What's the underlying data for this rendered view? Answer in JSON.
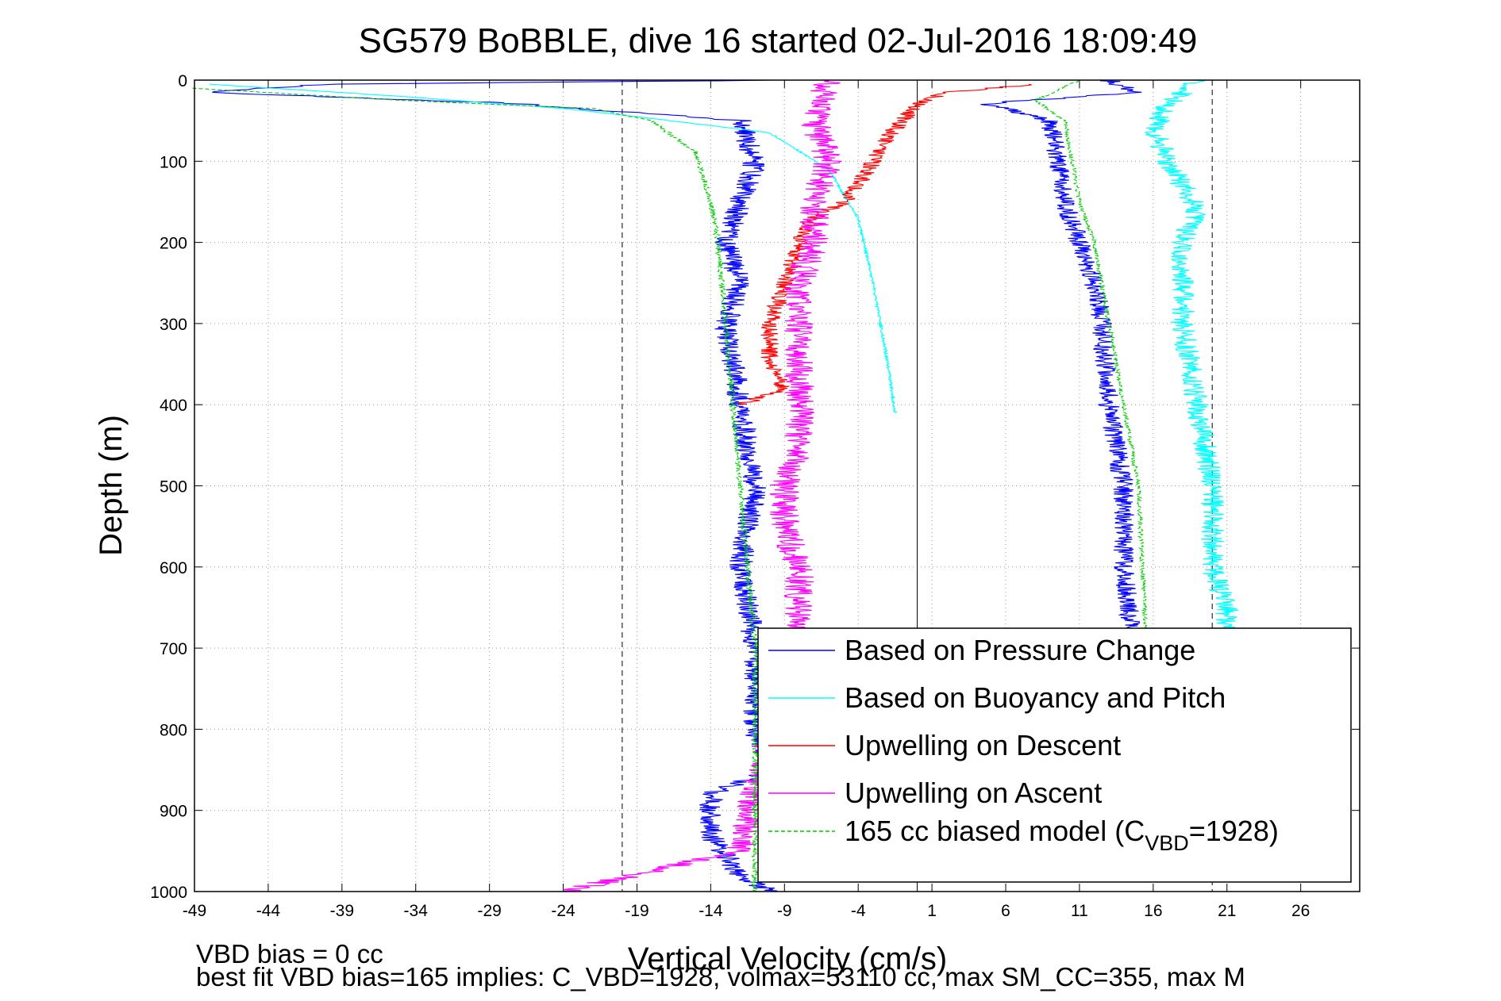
{
  "chart_data": {
    "type": "line",
    "title": "SG579 BoBBLE, dive 16 started 02-Jul-2016 18:09:49",
    "xlabel": "Vertical Velocity (cm/s)",
    "ylabel": "Depth (m)",
    "xlim": [
      -49,
      30
    ],
    "ylim": [
      0,
      1000
    ],
    "y_reversed": true,
    "grid": true,
    "legend_placement": "bottom-right",
    "x_ticks": [
      -49,
      -44,
      -39,
      -34,
      -29,
      -24,
      -19,
      -14,
      -9,
      -4,
      1,
      6,
      11,
      16,
      21,
      26
    ],
    "y_ticks": [
      0,
      100,
      200,
      300,
      400,
      500,
      600,
      700,
      800,
      900,
      1000
    ],
    "reference_lines": [
      {
        "x": -20,
        "style": "dashed"
      },
      {
        "x": 0,
        "style": "solid"
      },
      {
        "x": 20,
        "style": "dashed"
      }
    ],
    "legend": {
      "pressure": "Based on Pressure Change",
      "buoyancy": "Based on Buoyancy and Pitch",
      "up_desc": "Upwelling on Descent",
      "up_asc": "Upwelling on Ascent",
      "model_main": "165 cc biased model (C",
      "model_sub": "VBD",
      "model_tail": "=1928)"
    },
    "series": [
      {
        "key": "pressure_desc",
        "legend_key": "pressure",
        "color": "#0000ff",
        "style": "solid",
        "noise": 0.8,
        "x": [
          -9,
          -40,
          -48,
          -38,
          -28,
          -12,
          -11,
          -12,
          -13,
          -12,
          -13,
          -12,
          -11,
          -12,
          -11,
          -11,
          -10,
          -14,
          -14,
          -12,
          -10
        ],
        "y": [
          0,
          5,
          15,
          22,
          28,
          50,
          100,
          150,
          200,
          250,
          300,
          400,
          500,
          600,
          700,
          800,
          850,
          880,
          930,
          980,
          1000
        ]
      },
      {
        "key": "buoyancy_desc",
        "legend_key": "buoyancy",
        "color": "#00ffff",
        "style": "solid",
        "noise": 0.1,
        "x": [
          -48,
          -35,
          -24,
          -19,
          -10,
          -6,
          -4,
          -3,
          -2,
          -1.5
        ],
        "y": [
          5,
          20,
          35,
          45,
          65,
          110,
          170,
          250,
          350,
          410
        ]
      },
      {
        "key": "up_desc",
        "legend_key": "up_desc",
        "color": "#ff0000",
        "style": "solid",
        "noise": 0.6,
        "x": [
          8,
          2,
          0,
          -2,
          -3,
          -4,
          -5,
          -7,
          -8,
          -9,
          -10,
          -10,
          -9,
          -12
        ],
        "y": [
          5,
          15,
          30,
          70,
          100,
          130,
          150,
          170,
          200,
          250,
          300,
          350,
          380,
          400
        ]
      },
      {
        "key": "up_asc",
        "legend_key": "up_asc",
        "color": "#ff00ff",
        "style": "solid",
        "noise": 1.0,
        "x": [
          -6,
          -7,
          -6,
          -7,
          -7,
          -8,
          -8,
          -8,
          -8,
          -8,
          -9,
          -9,
          -8,
          -8,
          -8,
          -10,
          -12,
          -24
        ],
        "y": [
          0,
          50,
          100,
          150,
          200,
          250,
          300,
          350,
          400,
          450,
          500,
          550,
          600,
          650,
          700,
          800,
          950,
          1000
        ]
      },
      {
        "key": "pressure_asc",
        "legend_key": "pressure",
        "color": "#0000ff",
        "style": "solid",
        "noise": 0.7,
        "x": [
          13,
          15,
          4,
          6,
          9,
          9.5,
          10,
          11,
          12,
          12.5,
          13,
          14,
          14,
          14.5
        ],
        "y": [
          0,
          15,
          30,
          35,
          50,
          100,
          150,
          200,
          250,
          300,
          400,
          500,
          600,
          680
        ]
      },
      {
        "key": "buoyancy_asc",
        "legend_key": "buoyancy",
        "color": "#00ffff",
        "style": "solid",
        "noise": 0.8,
        "x": [
          19,
          17,
          16,
          17,
          19,
          18,
          18,
          19,
          20,
          20,
          21,
          21
        ],
        "y": [
          0,
          30,
          60,
          100,
          160,
          200,
          300,
          400,
          500,
          600,
          650,
          680
        ]
      },
      {
        "key": "model_desc",
        "legend_key": "model",
        "color": "#00cc00",
        "style": "dashed",
        "noise": 0.2,
        "x": [
          -49,
          -35,
          -22,
          -18,
          -15,
          -14,
          -13.5,
          -13,
          -12.5,
          -12,
          -11.5,
          -11,
          -11
        ],
        "y": [
          10,
          25,
          35,
          50,
          90,
          150,
          200,
          300,
          400,
          500,
          600,
          700,
          1000
        ]
      },
      {
        "key": "model_asc",
        "legend_key": "model",
        "color": "#00cc00",
        "style": "dashed",
        "noise": 0.15,
        "x": [
          11,
          8,
          10,
          10.5,
          11,
          12,
          13,
          14,
          15,
          15.5
        ],
        "y": [
          0,
          25,
          50,
          100,
          150,
          200,
          300,
          400,
          500,
          680
        ]
      }
    ]
  },
  "footer": {
    "line1": "VBD bias = 0 cc",
    "line2": "best fit VBD bias=165 implies: C_VBD=1928, volmax=53110 cc, max SM_CC=355, max M"
  }
}
